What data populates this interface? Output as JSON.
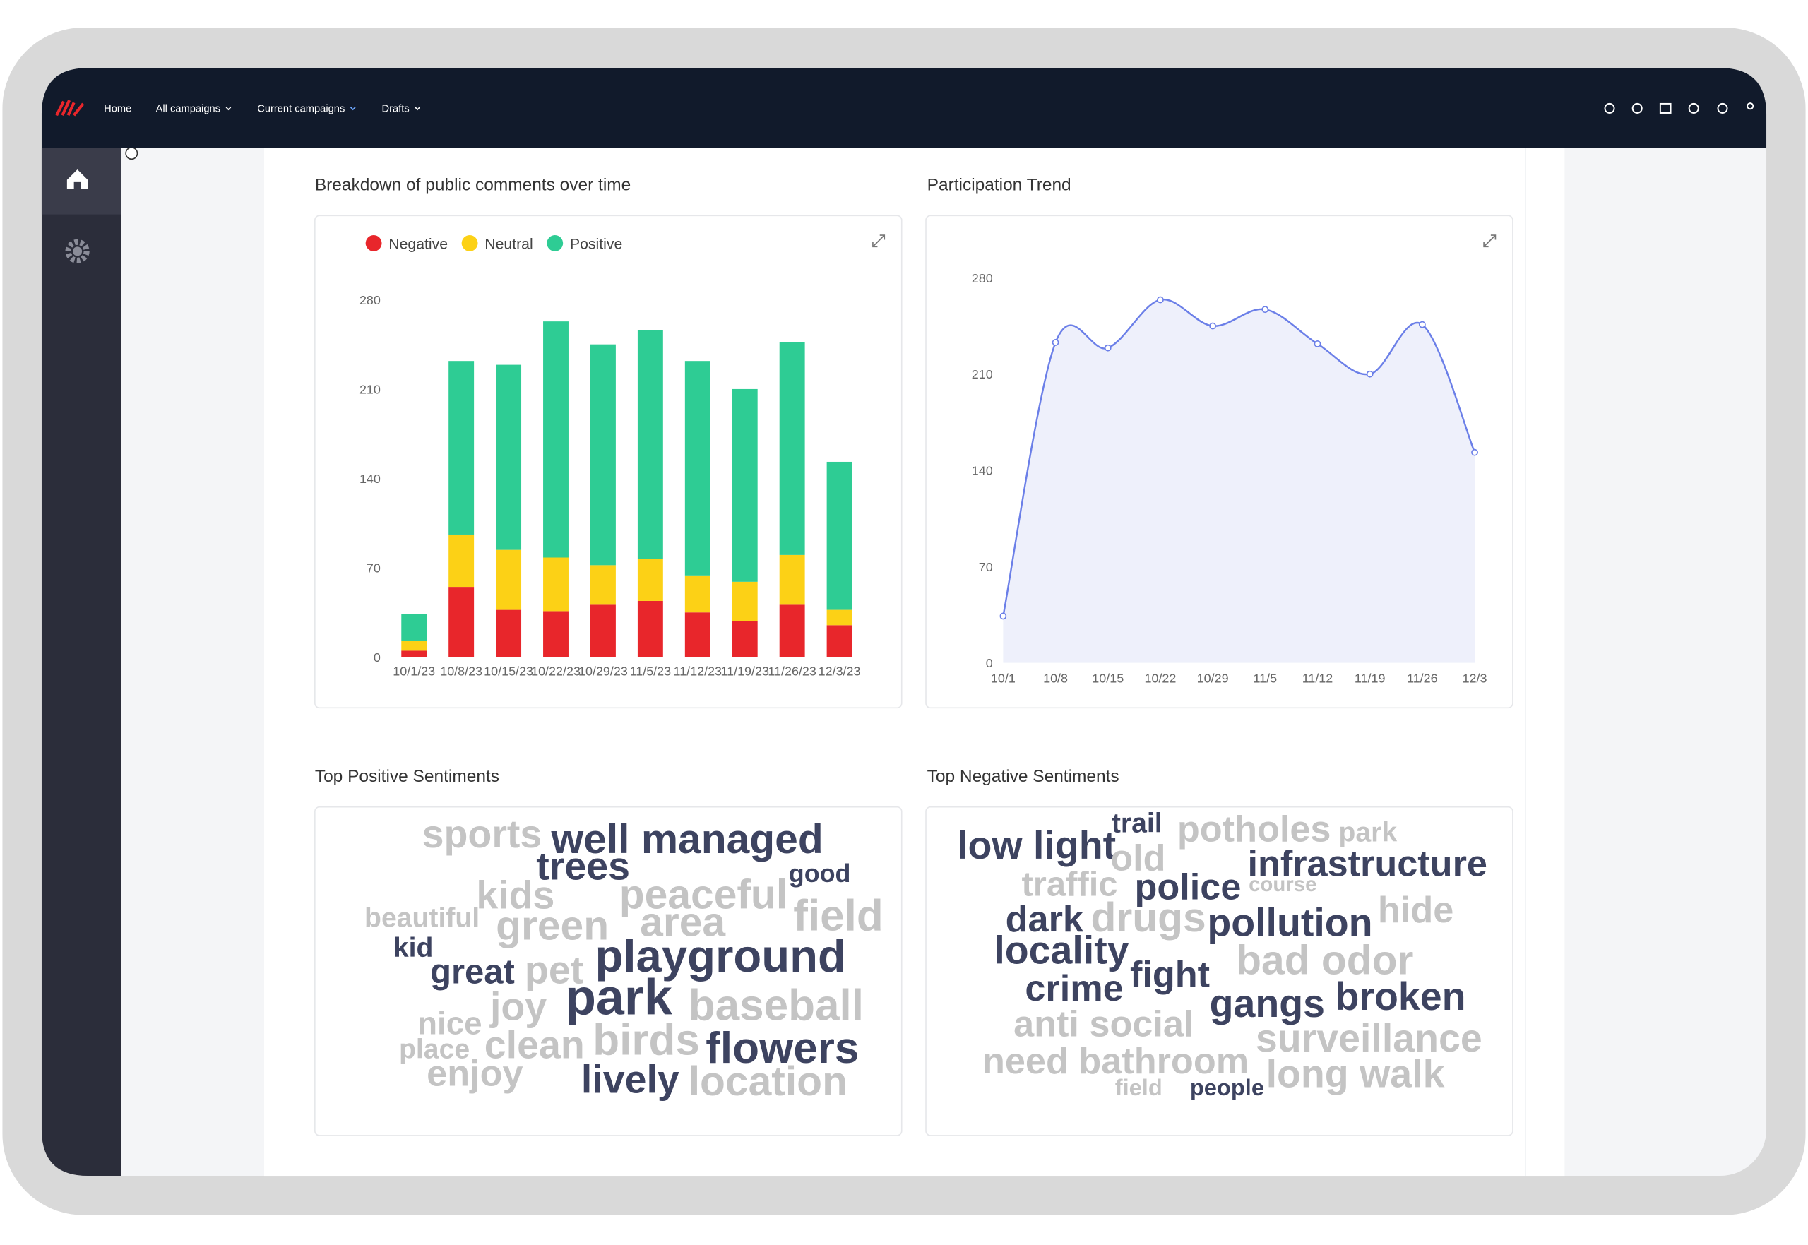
{
  "nav": {
    "items": [
      "Home",
      "All campaigns",
      "Current campaigns",
      "Drafts"
    ],
    "active": 2
  },
  "chart_data": [
    {
      "type": "bar",
      "stacked": true,
      "title": "Breakdown of public comments over time",
      "categories": [
        "10/1/23",
        "10/8/23",
        "10/15/23",
        "10/22/23",
        "10/29/23",
        "11/5/23",
        "11/12/23",
        "11/19/23",
        "11/26/23",
        "12/3/23"
      ],
      "series": [
        {
          "name": "Negative",
          "color": "#e8262b",
          "values": [
            5,
            55,
            37,
            36,
            41,
            44,
            35,
            28,
            41,
            25
          ]
        },
        {
          "name": "Neutral",
          "color": "#fcd116",
          "values": [
            8,
            41,
            47,
            42,
            31,
            33,
            29,
            31,
            39,
            12
          ]
        },
        {
          "name": "Positive",
          "color": "#2ecc94",
          "values": [
            21,
            136,
            145,
            185,
            173,
            179,
            168,
            151,
            167,
            116
          ]
        }
      ],
      "ylim": [
        0,
        280
      ],
      "yticks": [
        0,
        70,
        140,
        210,
        280
      ],
      "legend": "top-left"
    },
    {
      "type": "line",
      "title": "Participation Trend",
      "categories": [
        "10/1",
        "10/8",
        "10/15",
        "10/22",
        "10/29",
        "11/5",
        "11/12",
        "11/19",
        "11/26",
        "12/3"
      ],
      "values": [
        34,
        233,
        229,
        264,
        245,
        257,
        232,
        210,
        246,
        153
      ],
      "color": "#6b7fe8",
      "area_color": "#eef0fb",
      "ylim": [
        0,
        280
      ],
      "yticks": [
        0,
        70,
        140,
        210,
        280
      ]
    }
  ],
  "word_clouds": [
    {
      "title": "Top Positive Sentiments",
      "words": [
        {
          "text": "sports",
          "color": "#c4c4c4"
        },
        {
          "text": "well managed",
          "color": "#3d4360"
        },
        {
          "text": "trees",
          "color": "#3d4360"
        },
        {
          "text": "good",
          "color": "#3d4360"
        },
        {
          "text": "kids",
          "color": "#c4c4c4"
        },
        {
          "text": "peaceful",
          "color": "#c4c4c4"
        },
        {
          "text": "beautiful",
          "color": "#c4c4c4"
        },
        {
          "text": "field",
          "color": "#c4c4c4"
        },
        {
          "text": "green",
          "color": "#c4c4c4"
        },
        {
          "text": "area",
          "color": "#c4c4c4"
        },
        {
          "text": "kid",
          "color": "#3d4360"
        },
        {
          "text": "playground",
          "color": "#3d4360"
        },
        {
          "text": "great",
          "color": "#3d4360"
        },
        {
          "text": "pet",
          "color": "#c4c4c4"
        },
        {
          "text": "park",
          "color": "#3d4360"
        },
        {
          "text": "baseball",
          "color": "#c4c4c4"
        },
        {
          "text": "nice",
          "color": "#c4c4c4"
        },
        {
          "text": "joy",
          "color": "#c4c4c4"
        },
        {
          "text": "place",
          "color": "#c4c4c4"
        },
        {
          "text": "clean",
          "color": "#c4c4c4"
        },
        {
          "text": "birds",
          "color": "#c4c4c4"
        },
        {
          "text": "flowers",
          "color": "#3d4360"
        },
        {
          "text": "enjoy",
          "color": "#c4c4c4"
        },
        {
          "text": "lively",
          "color": "#3d4360"
        },
        {
          "text": "location",
          "color": "#c4c4c4"
        }
      ]
    },
    {
      "title": "Top Negative Sentiments",
      "words": [
        {
          "text": "low light",
          "color": "#3d4360"
        },
        {
          "text": "trail",
          "color": "#3d4360"
        },
        {
          "text": "potholes",
          "color": "#c4c4c4"
        },
        {
          "text": "park",
          "color": "#c4c4c4"
        },
        {
          "text": "old",
          "color": "#c4c4c4"
        },
        {
          "text": "infrastructure",
          "color": "#3d4360"
        },
        {
          "text": "traffic",
          "color": "#c4c4c4"
        },
        {
          "text": "police",
          "color": "#3d4360"
        },
        {
          "text": "course",
          "color": "#c4c4c4"
        },
        {
          "text": "hide",
          "color": "#c4c4c4"
        },
        {
          "text": "dark",
          "color": "#3d4360"
        },
        {
          "text": "drugs",
          "color": "#c4c4c4"
        },
        {
          "text": "pollution",
          "color": "#3d4360"
        },
        {
          "text": "locality",
          "color": "#3d4360"
        },
        {
          "text": "bad odor",
          "color": "#c4c4c4"
        },
        {
          "text": "fight",
          "color": "#3d4360"
        },
        {
          "text": "crime",
          "color": "#3d4360"
        },
        {
          "text": "gangs",
          "color": "#3d4360"
        },
        {
          "text": "broken",
          "color": "#3d4360"
        },
        {
          "text": "anti social",
          "color": "#c4c4c4"
        },
        {
          "text": "surveillance",
          "color": "#c4c4c4"
        },
        {
          "text": "need bathroom",
          "color": "#c4c4c4"
        },
        {
          "text": "field",
          "color": "#c4c4c4"
        },
        {
          "text": "people",
          "color": "#3d4360"
        },
        {
          "text": "long walk",
          "color": "#c4c4c4"
        }
      ]
    }
  ]
}
